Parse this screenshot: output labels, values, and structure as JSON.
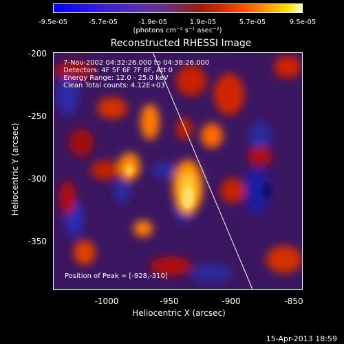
{
  "colorbar": {
    "ticks": [
      "-9.5e-05",
      "-5.7e-05",
      "-1.9e-05",
      "1.9e-05",
      "5.7e-05",
      "9.5e-05"
    ],
    "unit": "(photons cm⁻² s⁻¹ asec⁻²)"
  },
  "plot": {
    "title": "Reconstructed RHESSI Image",
    "info": {
      "time_range": "7-Nov-2002 04:32:26.000 to 04:38:26.000",
      "detectors": "Detectors: 4F 5F 6F 7F 8F, Att 0",
      "energy": "Energy Range: 12.0 - 25.0 keV",
      "clean": "Clean    Total counts: 4.12E+03"
    },
    "peak": "Position of Peak = [-928,-310]",
    "xlabel": "Heliocentric X (arcsec)",
    "ylabel": "Heliocentric Y (arcsec)",
    "xticks": [
      "-1000",
      "-950",
      "-900",
      "-850"
    ],
    "yticks": [
      "-200",
      "-250",
      "-300",
      "-350"
    ],
    "xrange": [
      -1045,
      -845
    ],
    "yrange": [
      -198,
      -388
    ],
    "limb_line": {
      "x1": -965,
      "y1": -198,
      "x2": -885,
      "y2": -388
    },
    "colors": {
      "background": "#3b1660",
      "limb": "#ffffff"
    }
  },
  "footer": {
    "date": "15-Apr-2013 18:59"
  }
}
